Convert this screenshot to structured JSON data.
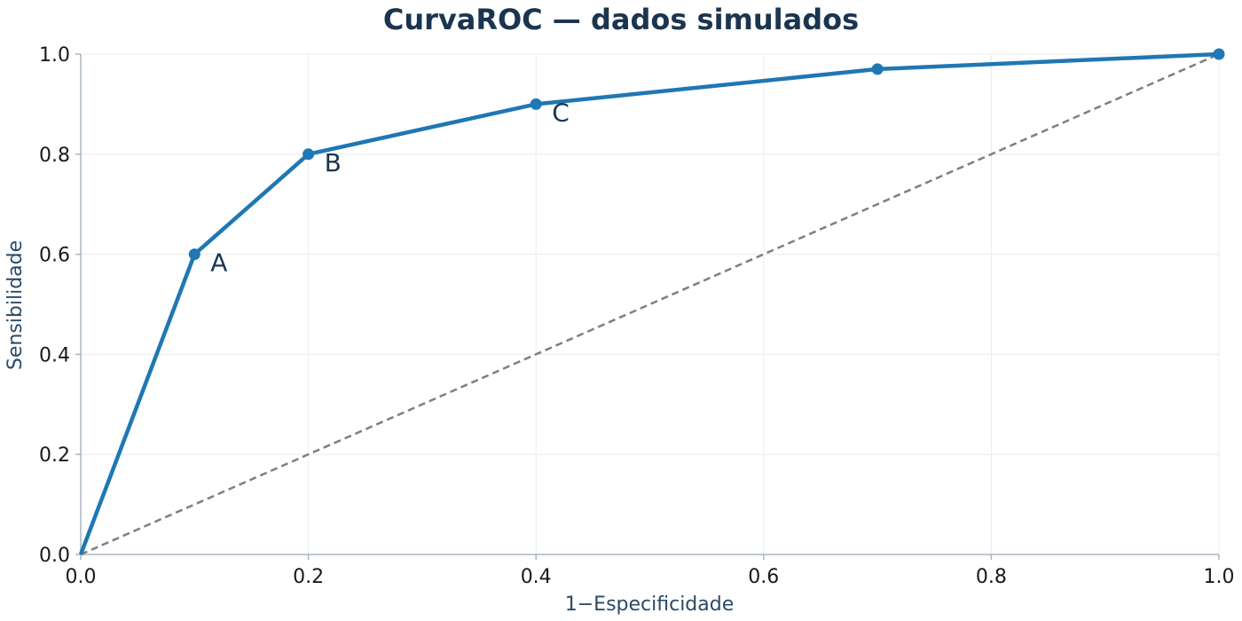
{
  "chart_data": {
    "type": "line",
    "title": "CurvaROC — dados simulados",
    "xlabel": "1−Especificidade",
    "ylabel": "Sensibilidade",
    "xlim": [
      0.0,
      1.0
    ],
    "ylim": [
      0.0,
      1.0
    ],
    "xticks": [
      "0.0",
      "0.2",
      "0.4",
      "0.6",
      "0.8",
      "1.0"
    ],
    "yticks": [
      "0.0",
      "0.2",
      "0.4",
      "0.6",
      "0.8",
      "1.0"
    ],
    "grid": true,
    "colors": {
      "roc": "#1f77b4",
      "reference": "#7f7f7f"
    },
    "series": [
      {
        "x": [
          0.0,
          0.1,
          0.2,
          0.4,
          0.7,
          1.0
        ],
        "y": [
          0.0,
          0.6,
          0.8,
          0.9,
          0.97,
          1.0
        ],
        "style": "solid-with-markers"
      },
      {
        "x": [
          0.0,
          1.0
        ],
        "y": [
          0.0,
          1.0
        ],
        "style": "dashed"
      }
    ],
    "annotations": [
      {
        "text": "A",
        "x": 0.1,
        "y": 0.6
      },
      {
        "text": "B",
        "x": 0.2,
        "y": 0.8
      },
      {
        "text": "C",
        "x": 0.4,
        "y": 0.9
      }
    ]
  }
}
